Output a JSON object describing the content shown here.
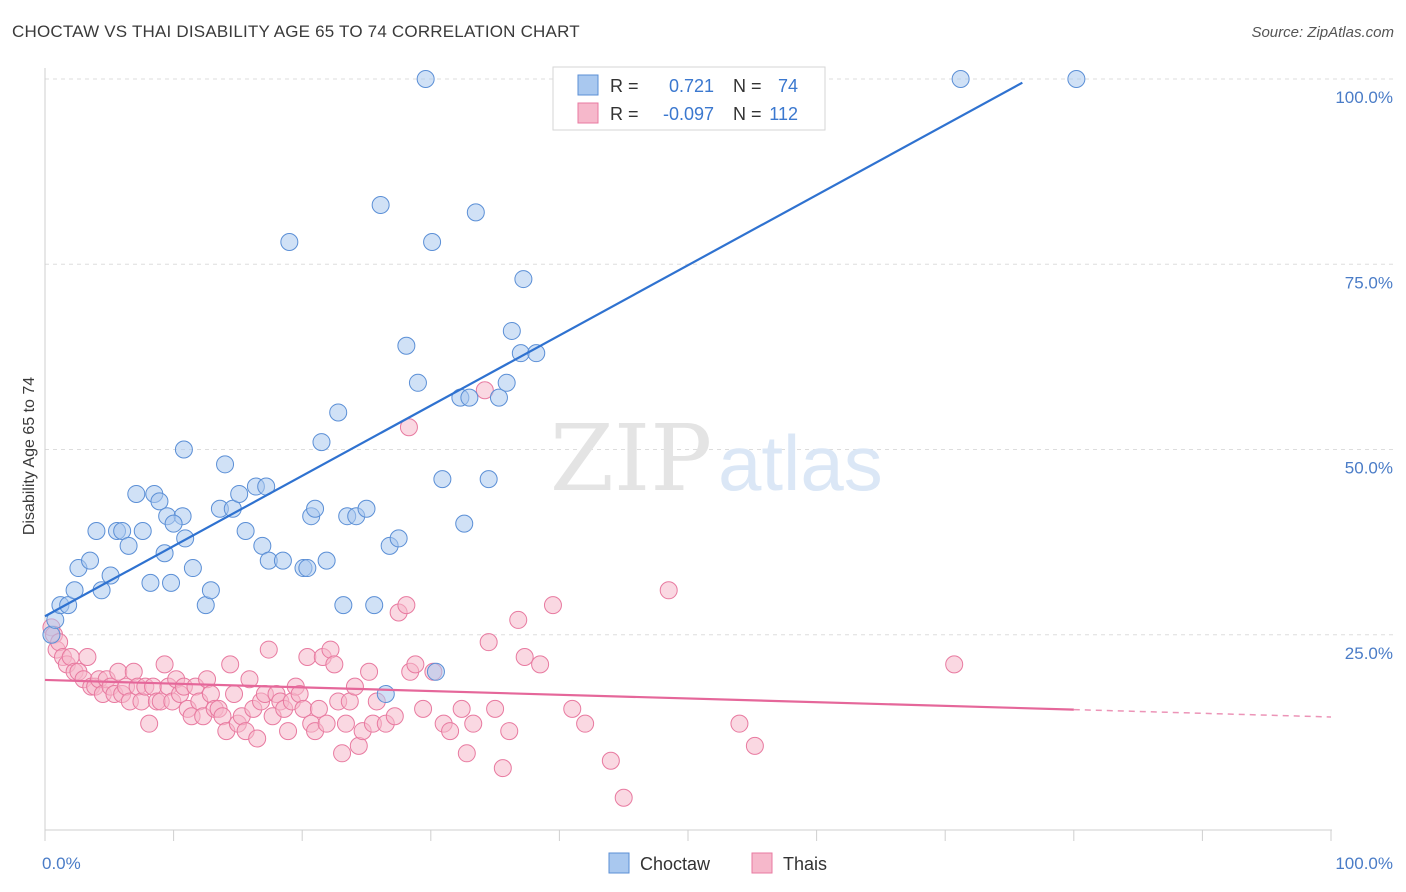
{
  "header": {
    "title": "CHOCTAW VS THAI DISABILITY AGE 65 TO 74 CORRELATION CHART",
    "source": "Source: ZipAtlas.com"
  },
  "watermark": {
    "zip": "ZIP",
    "atlas": "atlas"
  },
  "colors": {
    "choctaw_fill": "#a9c8ef",
    "choctaw_stroke": "#5b8fd6",
    "choctaw_line": "#2f72d0",
    "thais_fill": "#f6b8cb",
    "thais_stroke": "#e87aa0",
    "thais_line": "#e5679a",
    "tick_text": "#4a7cc7",
    "grid": "#dddddd"
  },
  "stats_legend": {
    "row1": {
      "r_label": "R =",
      "r_value": "0.721",
      "n_label": "N =",
      "n_value": "74"
    },
    "row2": {
      "r_label": "R =",
      "r_value": "-0.097",
      "n_label": "N =",
      "n_value": "112"
    }
  },
  "chart_data": {
    "type": "scatter",
    "title": "CHOCTAW VS THAI DISABILITY AGE 65 TO 74 CORRELATION CHART",
    "xlabel": "",
    "ylabel": "Disability Age 65 to 74",
    "xlim": [
      0,
      100
    ],
    "ylim": [
      0,
      100
    ],
    "x_tick_labels": [
      "0.0%",
      "100.0%"
    ],
    "y_ticks": [
      25,
      50,
      75,
      100
    ],
    "y_tick_labels": [
      "25.0%",
      "50.0%",
      "75.0%",
      "100.0%"
    ],
    "grid": true,
    "legend_position": "bottom-center",
    "series": [
      {
        "name": "Choctaw",
        "r": 0.721,
        "n": 74,
        "trend": {
          "x": [
            0,
            76
          ],
          "y": [
            27.5,
            99.5
          ]
        },
        "points": [
          [
            0.5,
            25
          ],
          [
            0.8,
            27
          ],
          [
            1.2,
            29
          ],
          [
            1.8,
            29
          ],
          [
            2.3,
            31
          ],
          [
            2.6,
            34
          ],
          [
            3.5,
            35
          ],
          [
            4,
            39
          ],
          [
            4.4,
            31
          ],
          [
            5.1,
            33
          ],
          [
            5.6,
            39
          ],
          [
            6,
            39
          ],
          [
            6.5,
            37
          ],
          [
            7.1,
            44
          ],
          [
            7.6,
            39
          ],
          [
            8.2,
            32
          ],
          [
            8.5,
            44
          ],
          [
            8.9,
            43
          ],
          [
            9.3,
            36
          ],
          [
            9.5,
            41
          ],
          [
            9.8,
            32
          ],
          [
            10.8,
            50
          ],
          [
            10.7,
            41
          ],
          [
            10.9,
            38
          ],
          [
            11.5,
            34
          ],
          [
            12.5,
            29
          ],
          [
            12.9,
            31
          ],
          [
            13.6,
            42
          ],
          [
            14,
            48
          ],
          [
            14.6,
            42
          ],
          [
            15.1,
            44
          ],
          [
            15.6,
            39
          ],
          [
            16.4,
            45
          ],
          [
            16.9,
            37
          ],
          [
            17.2,
            45
          ],
          [
            17.4,
            35
          ],
          [
            18.5,
            35
          ],
          [
            19,
            78
          ],
          [
            20.1,
            34
          ],
          [
            20.4,
            34
          ],
          [
            20.7,
            41
          ],
          [
            21.5,
            51
          ],
          [
            21.9,
            35
          ],
          [
            22.8,
            55
          ],
          [
            23.2,
            29
          ],
          [
            23.5,
            41
          ],
          [
            24.2,
            41
          ],
          [
            25,
            42
          ],
          [
            25.6,
            29
          ],
          [
            26.1,
            83
          ],
          [
            26.8,
            37
          ],
          [
            27.5,
            38
          ],
          [
            28.1,
            64
          ],
          [
            29,
            59
          ],
          [
            29.6,
            100
          ],
          [
            30.1,
            78
          ],
          [
            30.4,
            20
          ],
          [
            30.9,
            46
          ],
          [
            32.3,
            57
          ],
          [
            32.6,
            40
          ],
          [
            33.5,
            82
          ],
          [
            34.5,
            46
          ],
          [
            35.3,
            57
          ],
          [
            35.9,
            59
          ],
          [
            36.3,
            66
          ],
          [
            37,
            63
          ],
          [
            37.2,
            73
          ],
          [
            38.2,
            63
          ],
          [
            71.2,
            100
          ],
          [
            80.2,
            100
          ],
          [
            10,
            40
          ],
          [
            21,
            42
          ],
          [
            26.5,
            17
          ],
          [
            33,
            57
          ]
        ]
      },
      {
        "name": "Thais",
        "r": -0.097,
        "n": 112,
        "trend": {
          "x": [
            0,
            80
          ],
          "y": [
            18.9,
            14.9
          ]
        },
        "trend_dashed": {
          "x": [
            80,
            100
          ],
          "y": [
            14.9,
            13.9
          ]
        },
        "points": [
          [
            0.5,
            26
          ],
          [
            0.7,
            25
          ],
          [
            0.9,
            23
          ],
          [
            1.1,
            24
          ],
          [
            1.4,
            22
          ],
          [
            1.7,
            21
          ],
          [
            2,
            22
          ],
          [
            2.3,
            20
          ],
          [
            2.6,
            20
          ],
          [
            3,
            19
          ],
          [
            3.3,
            22
          ],
          [
            3.6,
            18
          ],
          [
            3.9,
            18
          ],
          [
            4.2,
            19
          ],
          [
            4.5,
            17
          ],
          [
            4.8,
            19
          ],
          [
            5.1,
            18
          ],
          [
            5.4,
            17
          ],
          [
            5.7,
            20
          ],
          [
            6,
            17
          ],
          [
            6.3,
            18
          ],
          [
            6.6,
            16
          ],
          [
            6.9,
            20
          ],
          [
            7.2,
            18
          ],
          [
            7.5,
            16
          ],
          [
            7.8,
            18
          ],
          [
            8.1,
            13
          ],
          [
            8.4,
            18
          ],
          [
            8.7,
            16
          ],
          [
            9,
            16
          ],
          [
            9.3,
            21
          ],
          [
            9.6,
            18
          ],
          [
            9.9,
            16
          ],
          [
            10.2,
            19
          ],
          [
            10.5,
            17
          ],
          [
            10.8,
            18
          ],
          [
            11.1,
            15
          ],
          [
            11.4,
            14
          ],
          [
            11.7,
            18
          ],
          [
            12,
            16
          ],
          [
            12.3,
            14
          ],
          [
            12.6,
            19
          ],
          [
            12.9,
            17
          ],
          [
            13.2,
            15
          ],
          [
            13.5,
            15
          ],
          [
            13.8,
            14
          ],
          [
            14.1,
            12
          ],
          [
            14.4,
            21
          ],
          [
            14.7,
            17
          ],
          [
            15,
            13
          ],
          [
            15.3,
            14
          ],
          [
            15.6,
            12
          ],
          [
            15.9,
            19
          ],
          [
            16.2,
            15
          ],
          [
            16.5,
            11
          ],
          [
            16.8,
            16
          ],
          [
            17.1,
            17
          ],
          [
            17.4,
            23
          ],
          [
            17.7,
            14
          ],
          [
            18,
            17
          ],
          [
            18.3,
            16
          ],
          [
            18.6,
            15
          ],
          [
            18.9,
            12
          ],
          [
            19.2,
            16
          ],
          [
            19.5,
            18
          ],
          [
            19.8,
            17
          ],
          [
            20.1,
            15
          ],
          [
            20.4,
            22
          ],
          [
            20.7,
            13
          ],
          [
            21,
            12
          ],
          [
            21.3,
            15
          ],
          [
            21.6,
            22
          ],
          [
            21.9,
            13
          ],
          [
            22.2,
            23
          ],
          [
            22.5,
            21
          ],
          [
            22.8,
            16
          ],
          [
            23.1,
            9
          ],
          [
            23.4,
            13
          ],
          [
            23.7,
            16
          ],
          [
            24.1,
            18
          ],
          [
            24.4,
            10
          ],
          [
            24.7,
            12
          ],
          [
            25.2,
            20
          ],
          [
            25.5,
            13
          ],
          [
            25.8,
            16
          ],
          [
            26.5,
            13
          ],
          [
            27.2,
            14
          ],
          [
            27.5,
            28
          ],
          [
            28.1,
            29
          ],
          [
            28.4,
            20
          ],
          [
            28.8,
            21
          ],
          [
            29.4,
            15
          ],
          [
            30.2,
            20
          ],
          [
            31,
            13
          ],
          [
            31.5,
            12
          ],
          [
            32.4,
            15
          ],
          [
            32.8,
            9
          ],
          [
            33.3,
            13
          ],
          [
            34.5,
            24
          ],
          [
            35,
            15
          ],
          [
            35.6,
            7
          ],
          [
            36.1,
            12
          ],
          [
            36.8,
            27
          ],
          [
            37.3,
            22
          ],
          [
            38.5,
            21
          ],
          [
            39.5,
            29
          ],
          [
            41,
            15
          ],
          [
            42,
            13
          ],
          [
            44,
            8
          ],
          [
            45,
            3
          ],
          [
            48.5,
            31
          ],
          [
            54,
            13
          ],
          [
            55.2,
            10
          ],
          [
            70.7,
            21
          ],
          [
            28.3,
            53
          ],
          [
            34.2,
            58
          ]
        ]
      }
    ]
  },
  "bottom_legend": {
    "items": [
      {
        "label": "Choctaw"
      },
      {
        "label": "Thais"
      }
    ]
  }
}
